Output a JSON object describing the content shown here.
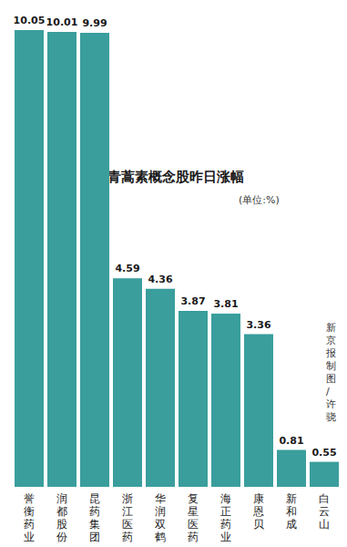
{
  "chart_data": {
    "type": "bar",
    "title": "青蒿素概念股昨日涨幅",
    "subtitle": "(单位:%)",
    "annotations": [
      "新京报制图/许骁"
    ],
    "categories": [
      "誉衡药业",
      "润都股份",
      "昆药集团",
      "浙江医药",
      "华润双鹤",
      "复星医药",
      "海正药业",
      "康恩贝",
      "新和成",
      "白云山"
    ],
    "values": [
      10.05,
      10.01,
      9.99,
      4.59,
      4.36,
      3.87,
      3.81,
      3.36,
      0.81,
      0.55
    ],
    "color": "#3a9e9c",
    "ylim": [
      0,
      10.05
    ],
    "data_labels": true,
    "tick_labels": "x",
    "grid": false
  }
}
